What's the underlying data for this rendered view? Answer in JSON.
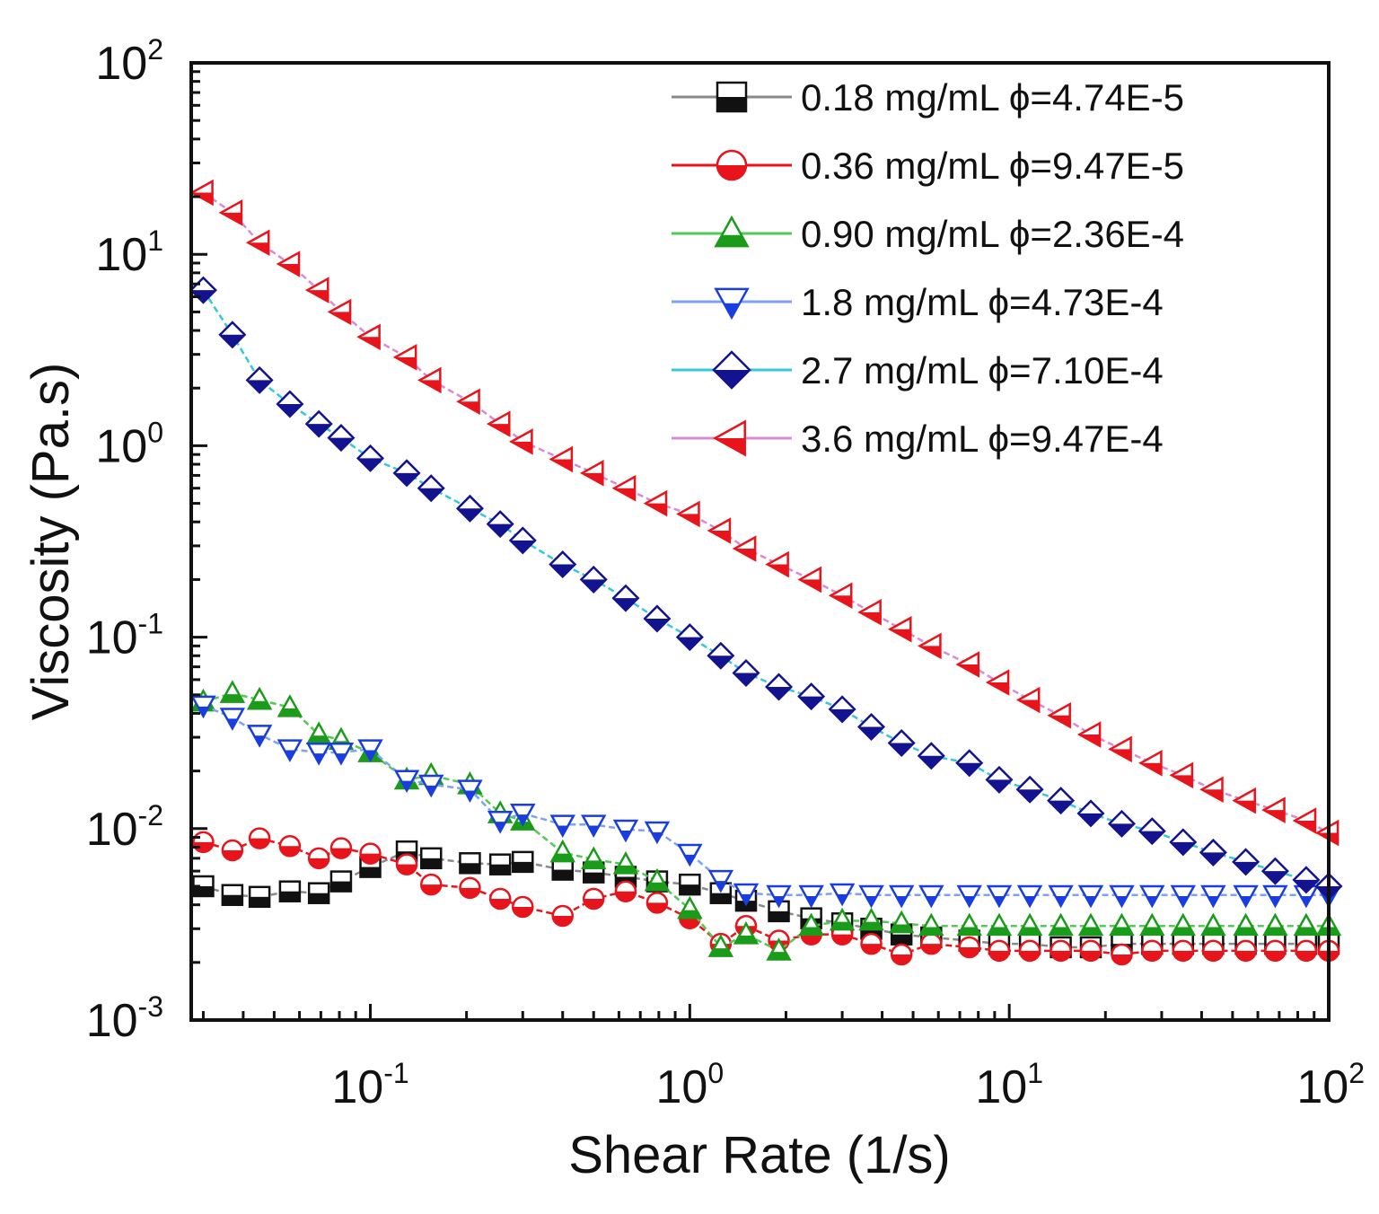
{
  "chart_data": {
    "type": "scatter",
    "title": "",
    "xlabel": "Shear Rate (1/s)",
    "ylabel": "Viscosity (Pa.s)",
    "xscale": "log",
    "yscale": "log",
    "xlim": [
      0.0275,
      100
    ],
    "ylim": [
      0.001,
      100
    ],
    "xticks": [
      {
        "base": "10",
        "exp": "-1",
        "value": 0.1
      },
      {
        "base": "10",
        "exp": "0",
        "value": 1
      },
      {
        "base": "10",
        "exp": "1",
        "value": 10
      },
      {
        "base": "10",
        "exp": "2",
        "value": 100
      }
    ],
    "yticks": [
      {
        "base": "10",
        "exp": "-3",
        "value": 0.001
      },
      {
        "base": "10",
        "exp": "-2",
        "value": 0.01
      },
      {
        "base": "10",
        "exp": "-1",
        "value": 0.1
      },
      {
        "base": "10",
        "exp": "0",
        "value": 1
      },
      {
        "base": "10",
        "exp": "1",
        "value": 10
      },
      {
        "base": "10",
        "exp": "2",
        "value": 100
      }
    ],
    "legend_position": "top-right",
    "x": [
      0.03,
      0.037,
      0.045,
      0.056,
      0.069,
      0.081,
      0.1,
      0.13,
      0.155,
      0.205,
      0.255,
      0.3,
      0.4,
      0.5,
      0.63,
      0.79,
      1.0,
      1.25,
      1.5,
      1.9,
      2.4,
      3.0,
      3.7,
      4.6,
      5.7,
      7.5,
      9.3,
      11.6,
      14.5,
      18,
      22.5,
      28,
      35,
      43.5,
      55,
      68,
      85,
      100
    ],
    "series": [
      {
        "name": "0.18 mg/mL ϕ=4.74E-5",
        "label": "0.18 mg/mL",
        "phi": "ϕ=4.74E-5",
        "marker": "square",
        "color": "#111111",
        "line_color": "#8a8a8a",
        "values": [
          0.005,
          0.0045,
          0.0044,
          0.0047,
          0.0046,
          0.0053,
          0.0063,
          0.0076,
          0.007,
          0.0066,
          0.0065,
          0.0067,
          0.0061,
          0.0059,
          0.0056,
          0.0053,
          0.0051,
          0.0046,
          0.0042,
          0.0037,
          0.0034,
          0.0032,
          0.003,
          0.0028,
          0.0027,
          0.0026,
          0.0025,
          0.0025,
          0.0024,
          0.0024,
          0.0025,
          0.0025,
          0.0025,
          0.0025,
          0.0025,
          0.0025,
          0.0025,
          0.0025
        ]
      },
      {
        "name": "0.36 mg/mL ϕ=9.47E-5",
        "label": "0.36 mg/mL",
        "phi": "ϕ=9.47E-5",
        "marker": "circle",
        "color": "#e8141b",
        "line_color": "#e8141b",
        "values": [
          0.0085,
          0.0077,
          0.0089,
          0.0081,
          0.007,
          0.0079,
          0.0074,
          0.0065,
          0.0051,
          0.0049,
          0.0043,
          0.0039,
          0.0035,
          0.0043,
          0.0047,
          0.0041,
          0.0034,
          0.0025,
          0.0031,
          0.0026,
          0.0028,
          0.0028,
          0.0025,
          0.0022,
          0.0025,
          0.0024,
          0.0023,
          0.0023,
          0.0023,
          0.0023,
          0.0022,
          0.0023,
          0.0023,
          0.0023,
          0.0023,
          0.0023,
          0.0023,
          0.0023
        ]
      },
      {
        "name": "0.90 mg/mL ϕ=2.36E-4",
        "label": "0.90 mg/mL",
        "phi": "ϕ=2.36E-4",
        "marker": "triangle-up",
        "color": "#1a9b1a",
        "line_color": "#55c855",
        "values": [
          0.046,
          0.051,
          0.047,
          0.043,
          0.031,
          0.029,
          0.025,
          0.018,
          0.019,
          0.017,
          0.012,
          0.011,
          0.0075,
          0.0069,
          0.0065,
          0.0053,
          0.0038,
          0.0024,
          0.0028,
          0.0023,
          0.0031,
          0.0033,
          0.0033,
          0.0032,
          0.0031,
          0.0031,
          0.0031,
          0.0031,
          0.0031,
          0.0031,
          0.0031,
          0.0031,
          0.0031,
          0.0031,
          0.0031,
          0.0031,
          0.0031,
          0.0031
        ]
      },
      {
        "name": "1.8 mg/mL ϕ=4.73E-4",
        "label": "1.8 mg/mL",
        "phi": "ϕ=4.73E-4",
        "marker": "triangle-down",
        "color": "#1a3de0",
        "line_color": "#7fa2f0",
        "values": [
          0.044,
          0.038,
          0.031,
          0.026,
          0.025,
          0.025,
          0.026,
          0.018,
          0.017,
          0.016,
          0.011,
          0.012,
          0.0105,
          0.0105,
          0.0099,
          0.0097,
          0.0074,
          0.0054,
          0.0046,
          0.0045,
          0.0045,
          0.0046,
          0.0045,
          0.0045,
          0.0045,
          0.0045,
          0.0045,
          0.0045,
          0.0045,
          0.0045,
          0.0045,
          0.0045,
          0.0045,
          0.0045,
          0.0045,
          0.0045,
          0.0045,
          0.0045
        ]
      },
      {
        "name": "2.7 mg/mL ϕ=7.10E-4",
        "label": "2.7 mg/mL",
        "phi": "ϕ=7.10E-4",
        "marker": "diamond",
        "color": "#13138f",
        "line_color": "#35c8d8",
        "values": [
          6.5,
          3.8,
          2.2,
          1.65,
          1.3,
          1.1,
          0.86,
          0.72,
          0.6,
          0.47,
          0.39,
          0.32,
          0.24,
          0.2,
          0.16,
          0.125,
          0.1,
          0.08,
          0.065,
          0.055,
          0.049,
          0.042,
          0.034,
          0.028,
          0.024,
          0.022,
          0.018,
          0.016,
          0.014,
          0.012,
          0.0106,
          0.0097,
          0.0085,
          0.0075,
          0.0067,
          0.006,
          0.0054,
          0.005
        ]
      },
      {
        "name": "3.6 mg/mL ϕ=9.47E-4",
        "label": "3.6 mg/mL",
        "phi": "ϕ=9.47E-4",
        "marker": "triangle-left",
        "color": "#e8141b",
        "line_color": "#d88ad8",
        "values": [
          21,
          16.5,
          11.5,
          8.9,
          6.5,
          5,
          3.7,
          2.9,
          2.2,
          1.7,
          1.3,
          1.05,
          0.85,
          0.72,
          0.6,
          0.5,
          0.44,
          0.36,
          0.29,
          0.24,
          0.2,
          0.165,
          0.135,
          0.11,
          0.09,
          0.072,
          0.058,
          0.047,
          0.039,
          0.031,
          0.026,
          0.022,
          0.019,
          0.016,
          0.014,
          0.0125,
          0.011,
          0.0095
        ]
      }
    ]
  }
}
